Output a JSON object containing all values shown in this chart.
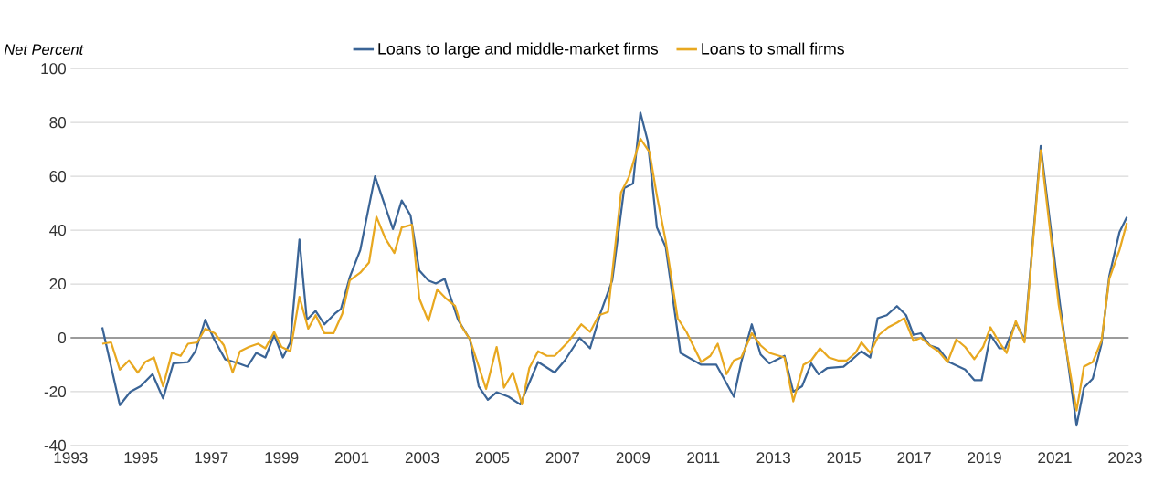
{
  "chart_data": {
    "type": "line",
    "ylabel": "Net Percent",
    "xlim": [
      1993,
      2023.1
    ],
    "xticks": [
      1993,
      1995,
      1997,
      1999,
      2001,
      2003,
      2005,
      2007,
      2009,
      2011,
      2013,
      2015,
      2017,
      2019,
      2021,
      2023
    ],
    "ylim": [
      -40,
      100
    ],
    "yticks": [
      -40,
      -20,
      0,
      20,
      40,
      60,
      80,
      100
    ],
    "grid": "y",
    "legend": "top",
    "line_style": "solid",
    "ref_lines": [
      {
        "axis": "y",
        "value": 0,
        "color": "#808080"
      }
    ],
    "series": [
      {
        "name": "Loans to large and middle-market firms",
        "color": "#3a6496",
        "x": [
          1993.9,
          1994.4,
          1994.7,
          1994.99,
          1995.33,
          1995.63,
          1995.92,
          1996.34,
          1996.55,
          1996.83,
          1997.1,
          1997.4,
          1997.78,
          1998.03,
          1998.28,
          1998.54,
          1998.79,
          1999.04,
          1999.25,
          1999.51,
          1999.72,
          1999.97,
          2000.22,
          2000.52,
          2000.69,
          2000.94,
          2001.24,
          2001.41,
          2001.66,
          2002.17,
          2002.42,
          2002.67,
          2002.92,
          2003.18,
          2003.39,
          2003.64,
          2004.02,
          2004.36,
          2004.61,
          2004.87,
          2005.12,
          2005.46,
          2005.79,
          2006.3,
          2006.77,
          2007.06,
          2007.48,
          2007.78,
          2008.07,
          2008.41,
          2008.75,
          2009.0,
          2009.21,
          2009.42,
          2009.68,
          2009.93,
          2010.35,
          2010.94,
          2011.37,
          2011.87,
          2012.08,
          2012.38,
          2012.63,
          2012.88,
          2013.31,
          2013.56,
          2013.81,
          2014.07,
          2014.28,
          2014.53,
          2014.99,
          2015.25,
          2015.5,
          2015.75,
          2015.96,
          2016.22,
          2016.51,
          2016.77,
          2016.98,
          2017.19,
          2017.44,
          2017.69,
          2017.99,
          2018.45,
          2018.71,
          2018.92,
          2019.17,
          2019.42,
          2019.59,
          2019.89,
          2020.14,
          2020.6,
          2021.15,
          2021.62,
          2021.83,
          2022.08,
          2022.33,
          2022.55,
          2022.84,
          2023.05
        ],
        "values": [
          3.9,
          -25,
          -20,
          -18,
          -13.5,
          -22.5,
          -9.5,
          -9,
          -5,
          6.7,
          -1,
          -8,
          -9.5,
          -10.7,
          -5.6,
          -7.3,
          1,
          -7.3,
          -1.7,
          36.5,
          6.7,
          10,
          5,
          9,
          10.7,
          22.5,
          32.6,
          43.8,
          60,
          40.4,
          51,
          45.5,
          25,
          21.3,
          20.2,
          21.9,
          6.7,
          -0.6,
          -18,
          -23,
          -20.2,
          -21.9,
          -24.7,
          -9,
          -12.9,
          -8.4,
          0,
          -3.9,
          9,
          21.3,
          55.6,
          57.3,
          83.7,
          73,
          41,
          33.7,
          -5.6,
          -10,
          -10,
          -21.9,
          -9,
          5,
          -6.2,
          -9.5,
          -6.7,
          -20,
          -18,
          -9.5,
          -13.5,
          -11.2,
          -10.7,
          -7.9,
          -5,
          -7.3,
          7.3,
          8.4,
          11.8,
          8.4,
          1.1,
          1.7,
          -2.8,
          -3.9,
          -9,
          -11.8,
          -15.7,
          -15.7,
          1.1,
          -3.9,
          -3.9,
          5.6,
          -0.6,
          71.3,
          12.4,
          -32.6,
          -18.5,
          -15.2,
          -2.2,
          23,
          39.3,
          44.9
        ]
      },
      {
        "name": "Loans to small firms",
        "color": "#e8a820",
        "x": [
          1993.9,
          1994.15,
          1994.4,
          1994.66,
          1994.91,
          1995.12,
          1995.37,
          1995.63,
          1995.88,
          1996.13,
          1996.34,
          1996.6,
          1996.83,
          1997.1,
          1997.36,
          1997.61,
          1997.82,
          1998.07,
          1998.33,
          1998.54,
          1998.79,
          1999.0,
          1999.25,
          1999.51,
          1999.76,
          1999.97,
          2000.22,
          2000.48,
          2000.73,
          2000.94,
          2001.24,
          2001.49,
          2001.7,
          2001.95,
          2002.21,
          2002.42,
          2002.71,
          2002.92,
          2003.18,
          2003.43,
          2003.68,
          2003.94,
          2004.11,
          2004.36,
          2004.82,
          2005.12,
          2005.33,
          2005.58,
          2005.84,
          2006.05,
          2006.3,
          2006.55,
          2006.77,
          2007.14,
          2007.53,
          2007.78,
          2008.03,
          2008.29,
          2008.66,
          2008.88,
          2009.21,
          2009.47,
          2009.68,
          2009.93,
          2010.27,
          2010.52,
          2010.94,
          2011.2,
          2011.41,
          2011.66,
          2011.87,
          2012.08,
          2012.38,
          2012.63,
          2012.88,
          2013.31,
          2013.56,
          2013.85,
          2014.07,
          2014.32,
          2014.57,
          2014.83,
          2015.08,
          2015.33,
          2015.5,
          2015.75,
          2016.0,
          2016.26,
          2016.51,
          2016.72,
          2016.98,
          2017.19,
          2017.44,
          2017.69,
          2017.95,
          2018.2,
          2018.45,
          2018.71,
          2018.96,
          2019.17,
          2019.42,
          2019.63,
          2019.89,
          2020.14,
          2020.6,
          2021.11,
          2021.62,
          2021.83,
          2022.08,
          2022.33,
          2022.55,
          2022.84,
          2023.05
        ],
        "values": [
          -2.2,
          -1.7,
          -11.8,
          -8.4,
          -12.9,
          -9,
          -7.3,
          -18,
          -5.6,
          -6.7,
          -2.2,
          -1.7,
          3.4,
          1.7,
          -2.8,
          -12.9,
          -5,
          -3.4,
          -2.2,
          -3.9,
          2.2,
          -3.4,
          -5,
          15.2,
          3.4,
          8.4,
          1.7,
          1.7,
          9,
          21.3,
          24.2,
          28,
          45,
          37,
          31.5,
          41,
          42,
          14.6,
          6.2,
          18,
          14.6,
          11.8,
          4.5,
          -0.6,
          -19,
          -3.4,
          -18.5,
          -12.9,
          -24.7,
          -11.2,
          -5,
          -6.7,
          -6.7,
          -1.7,
          5,
          2.2,
          8.4,
          9.6,
          54,
          59.6,
          74,
          69,
          52.8,
          36,
          7.3,
          2.2,
          -9,
          -6.7,
          -2.2,
          -13.5,
          -8.4,
          -7.3,
          1.7,
          -2.8,
          -5.6,
          -7.3,
          -23.6,
          -10,
          -8.4,
          -3.9,
          -7.3,
          -8.4,
          -8.4,
          -5.6,
          -1.7,
          -5.6,
          1.1,
          3.9,
          5.6,
          7.3,
          -1.1,
          0,
          -2.8,
          -5,
          -9,
          -0.6,
          -3.4,
          -7.9,
          -3.4,
          3.9,
          -1.7,
          -5.6,
          6.2,
          -1.7,
          69.7,
          12.4,
          -27,
          -10.7,
          -9,
          -1.1,
          21.9,
          32.6,
          42.7
        ]
      }
    ]
  }
}
